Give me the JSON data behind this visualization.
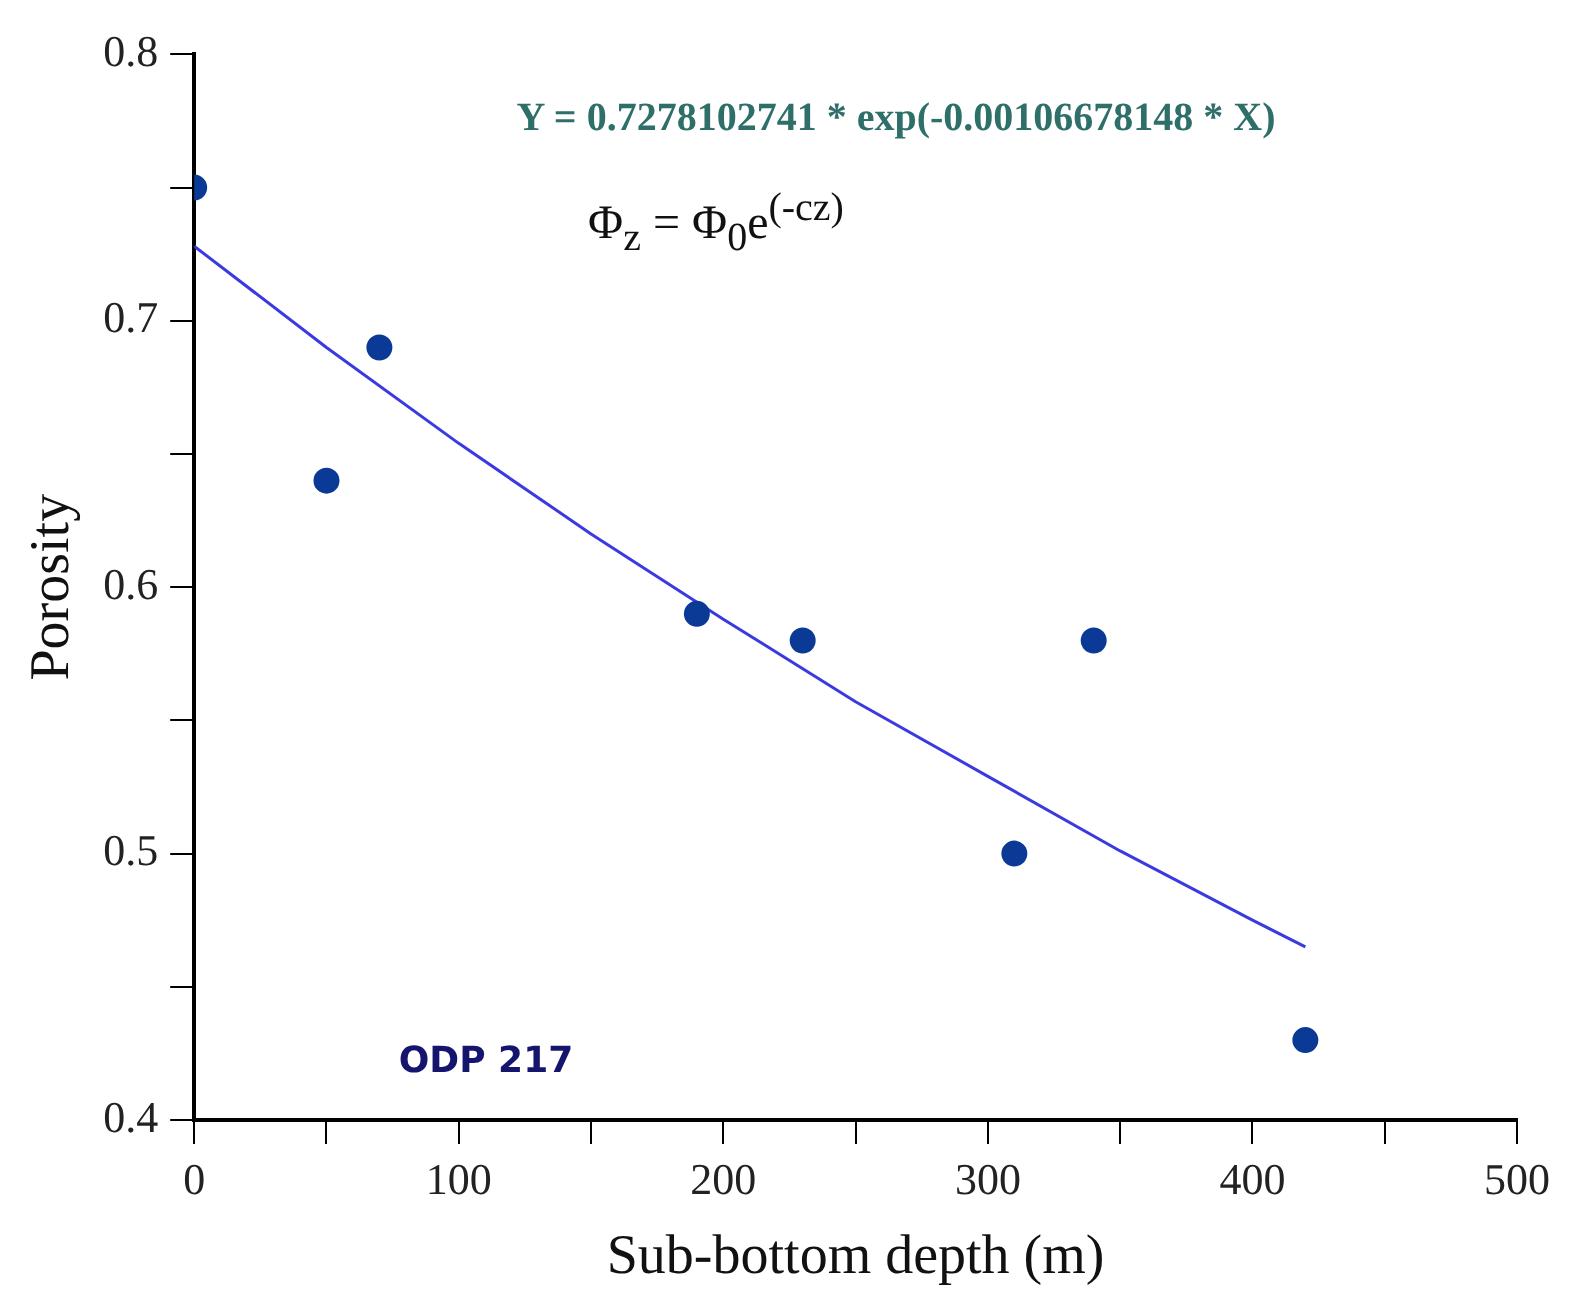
{
  "chart_data": {
    "type": "scatter",
    "xlabel": "Sub-bottom depth (m)",
    "ylabel": "Porosity",
    "annotations": [
      "Y = 0.7278102741 * exp(-0.00106678148 * X)",
      "Φ$_{z}$ = Φ$_{0}$e$^{(-cz)}$",
      "ODP 217"
    ],
    "series": [
      {
        "color": "#0b3a96",
        "marker": "circle",
        "x": [
          0,
          50,
          70,
          190,
          230,
          310,
          340,
          420
        ],
        "values": [
          0.75,
          0.64,
          0.69,
          0.59,
          0.58,
          0.5,
          0.58,
          0.43
        ]
      },
      {
        "type": "line",
        "color": "#3a3ae0",
        "x": [
          0,
          50,
          100,
          150,
          200,
          250,
          300,
          350,
          400,
          420
        ],
        "values": [
          0.728,
          0.69,
          0.654,
          0.62,
          0.588,
          0.557,
          0.529,
          0.501,
          0.475,
          0.465
        ]
      }
    ],
    "xlim": [
      0,
      500
    ],
    "xticks": [
      0,
      {
        "value": 50,
        "label": null
      },
      100,
      {
        "value": 150,
        "label": null
      },
      200,
      {
        "value": 250,
        "label": null
      },
      300,
      {
        "value": 350,
        "label": null
      },
      400,
      {
        "value": 450,
        "label": null
      },
      500
    ],
    "ylim": [
      0.4,
      0.8
    ],
    "yticks": [
      0.4,
      {
        "value": 0.45,
        "label": null
      },
      0.5,
      {
        "value": 0.55,
        "label": null
      },
      0.6,
      {
        "value": 0.65,
        "label": null
      },
      0.7,
      {
        "value": 0.75,
        "label": null
      },
      0.8
    ],
    "grid": false,
    "legend": false,
    "line_style": "solid"
  }
}
